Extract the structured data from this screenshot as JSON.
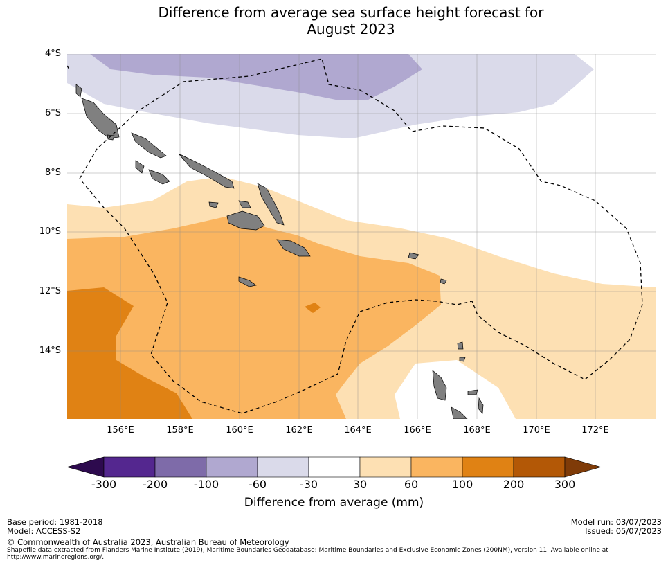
{
  "title_line1": "Difference from average sea surface height forecast for",
  "title_line2": "August 2023",
  "map": {
    "lat_labels": [
      "4°S",
      "6°S",
      "8°S",
      "10°S",
      "12°S",
      "14°S"
    ],
    "lon_labels": [
      "156°E",
      "158°E",
      "160°E",
      "162°E",
      "164°E",
      "166°E",
      "168°E",
      "170°E",
      "172°E"
    ],
    "extent": {
      "lon_min": 154.2,
      "lon_max": 174.0,
      "lat_min": -16.2,
      "lat_max": -4.0
    },
    "land_color": "#808080",
    "eez_line_color": "#000000"
  },
  "colorbar": {
    "tick_labels": [
      "-300",
      "-200",
      "-100",
      "-60",
      "-30",
      "30",
      "60",
      "100",
      "200",
      "300"
    ],
    "colors": [
      "#2d0a4e",
      "#54278f",
      "#7e6ba9",
      "#b0a8d0",
      "#dadaea",
      "#ffffff",
      "#fde0b3",
      "#fab560",
      "#e08214",
      "#b35806",
      "#7f3b08"
    ],
    "title": "Difference from average (mm)"
  },
  "footer": {
    "base_period": "Base period: 1981-2018",
    "model": "Model: ACCESS-S2",
    "model_run": "Model run: 03/07/2023",
    "issued": "Issued: 05/07/2023",
    "copyright": "© Commonwealth of Australia 2023, Australian Bureau of Meteorology",
    "shapefile_line1": "Shapefile data extracted from Flanders Marine Institute (2019), Maritime Boundaries Geodatabase: Maritime Boundaries and Exclusive Economic Zones (200NM), version 11. Available online at",
    "shapefile_line2": "http://www.marineregions.org/."
  }
}
